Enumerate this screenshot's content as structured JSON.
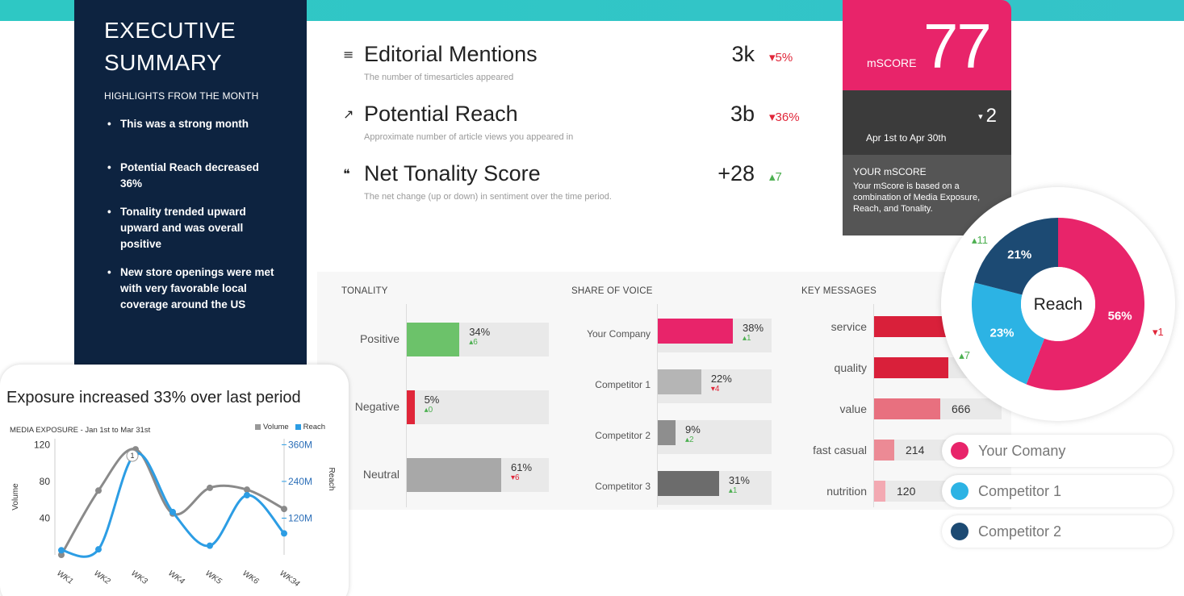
{
  "colors": {
    "pink": "#e8246a",
    "navy": "#1c4a73",
    "sky": "#2cb3e4",
    "green": "#6cc26a",
    "red": "#e02639",
    "grey": "#a8a8a8",
    "dark_grey": "#707070"
  },
  "executive": {
    "title_line1": "EXECUTIVE",
    "title_line2": "SUMMARY",
    "subtitle": "HIGHLIGHTS FROM THE MONTH",
    "bullets": [
      "This was a strong month",
      "Potential Reach decreased 36%",
      "Tonality trended upward upward and was overall positive",
      "New store openings were met with very favorable local coverage around the US"
    ]
  },
  "metrics": [
    {
      "icon": "list-icon",
      "glyph": "≡",
      "label": "Editorial Mentions",
      "desc": "The number of timesarticles appeared",
      "value": "3k",
      "delta": "▾5%",
      "trend": "down"
    },
    {
      "icon": "trend-icon",
      "glyph": "↗",
      "label": "Potential Reach",
      "desc": "Approximate number of article views you appeared in",
      "value": "3b",
      "delta": "▾36%",
      "trend": "down"
    },
    {
      "icon": "quote-icon",
      "glyph": "❝",
      "label": "Net Tonality Score",
      "desc": "The net change (up or down) in sentiment over the time period.",
      "value": "+28",
      "delta": "▴7",
      "trend": "up"
    }
  ],
  "mscore": {
    "label": "mSCORE",
    "value": "77",
    "change_arrow": "▾",
    "change": "2",
    "range": "Apr 1st to Apr 30th",
    "info_title": "YOUR mSCORE",
    "info_text": "Your mScore is based on a combination of Media Exposure, Reach, and Tonality."
  },
  "tonality": {
    "title": "TONALITY",
    "rows": [
      {
        "label": "Positive",
        "value": 34,
        "pct": "34%",
        "delta": "▴6",
        "trend": "up",
        "color": "#6cc26a"
      },
      {
        "label": "Negative",
        "value": 5,
        "pct": "5%",
        "delta": "▴0",
        "trend": "up",
        "color": "#e02639"
      },
      {
        "label": "Neutral",
        "value": 61,
        "pct": "61%",
        "delta": "▾6",
        "trend": "down",
        "color": "#a8a8a8"
      }
    ]
  },
  "share_of_voice": {
    "title": "SHARE OF VOICE",
    "rows": [
      {
        "label": "Your Company",
        "value": 38,
        "pct": "38%",
        "delta": "▴1",
        "trend": "up",
        "color": "#e8246a"
      },
      {
        "label": "Competitor 1",
        "value": 22,
        "pct": "22%",
        "delta": "▾4",
        "trend": "down",
        "color": "#b5b5b5"
      },
      {
        "label": "Competitor 2",
        "value": 9,
        "pct": "9%",
        "delta": "▴2",
        "trend": "up",
        "color": "#8e8e8e"
      },
      {
        "label": "Competitor 3",
        "value": 31,
        "pct": "31%",
        "delta": "▴1",
        "trend": "up",
        "color": "#6c6c6c"
      }
    ]
  },
  "key_messages": {
    "title": "KEY MESSAGES",
    "rows": [
      {
        "label": "service",
        "value": "",
        "color": "#d9203a"
      },
      {
        "label": "quality",
        "value": "",
        "color": "#d9203a"
      },
      {
        "label": "value",
        "value": "666",
        "color": "#e8707f"
      },
      {
        "label": "fast casual",
        "value": "214",
        "color": "#ec8a95"
      },
      {
        "label": "nutrition",
        "value": "120",
        "color": "#f3a9b2"
      }
    ]
  },
  "exposure": {
    "headline": "Exposure increased 33% over last period",
    "caption": "MEDIA EXPOSURE - Jan 1st  to Mar 31st",
    "legend_volume": "Volume",
    "legend_reach": "Reach"
  },
  "chart_data": [
    {
      "type": "line",
      "title": "Exposure increased 33% over last period",
      "subtitle": "MEDIA EXPOSURE - Jan 1st  to Mar 31st",
      "x": [
        "WK1",
        "WK2",
        "WK3",
        "WK4",
        "WK5",
        "WK6",
        "WK34"
      ],
      "series": [
        {
          "name": "Volume",
          "axis": "left",
          "color": "#8a8a8a",
          "values": [
            0,
            70,
            115,
            45,
            73,
            71,
            50
          ]
        },
        {
          "name": "Reach",
          "axis": "right",
          "color": "#2c9de4",
          "values": [
            15,
            18,
            330,
            140,
            30,
            195,
            70
          ]
        }
      ],
      "ylabel": "Volume",
      "y2label": "Reach",
      "yticks": [
        "120",
        "80",
        "40"
      ],
      "y2ticks": [
        "360M",
        "240M",
        "120M"
      ],
      "ylim": [
        0,
        130
      ],
      "y2lim": [
        0,
        390
      ],
      "annotations": [
        "1"
      ],
      "legend": "top-right",
      "grid": false
    },
    {
      "type": "pie",
      "title": "",
      "center_label": "Reach",
      "slices": [
        {
          "name": "Your Comany",
          "value": 56,
          "label": "56%",
          "delta": "▾1",
          "color": "#e8246a"
        },
        {
          "name": "Competitor 1",
          "value": 23,
          "label": "23%",
          "delta": "▴7",
          "color": "#2cb3e4"
        },
        {
          "name": "Competitor 2",
          "value": 21,
          "label": "21%",
          "delta": "▴11",
          "color": "#1c4a73"
        }
      ]
    }
  ],
  "legend_pills": [
    {
      "label": "Your Comany",
      "color": "#e8246a"
    },
    {
      "label": "Competitor 1",
      "color": "#2cb3e4"
    },
    {
      "label": "Competitor 2",
      "color": "#1c4a73"
    }
  ]
}
